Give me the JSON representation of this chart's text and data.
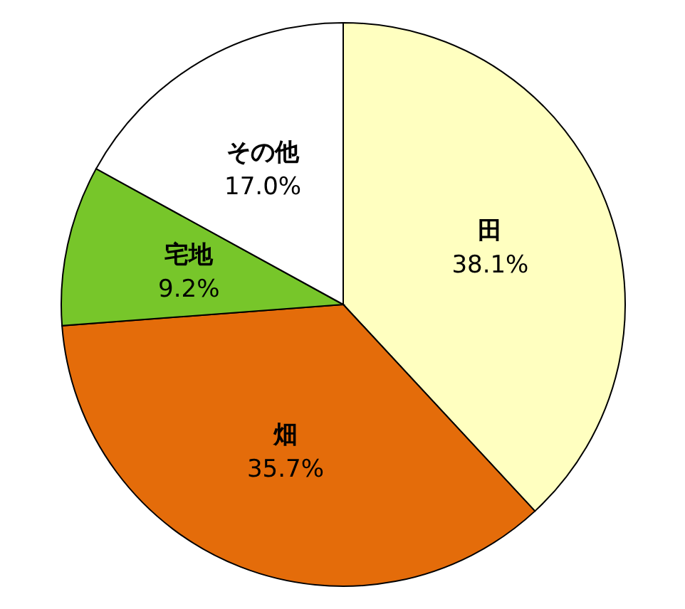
{
  "chart_data": {
    "type": "pie",
    "categories": [
      "田",
      "畑",
      "宅地",
      "その他"
    ],
    "values": [
      38.1,
      35.7,
      9.2,
      17.0
    ],
    "colors": [
      "#ffffc0",
      "#e46c0a",
      "#77c62a",
      "#ffffff"
    ],
    "value_labels": [
      "38.1%",
      "35.7%",
      "9.2%",
      "17.0%"
    ]
  }
}
